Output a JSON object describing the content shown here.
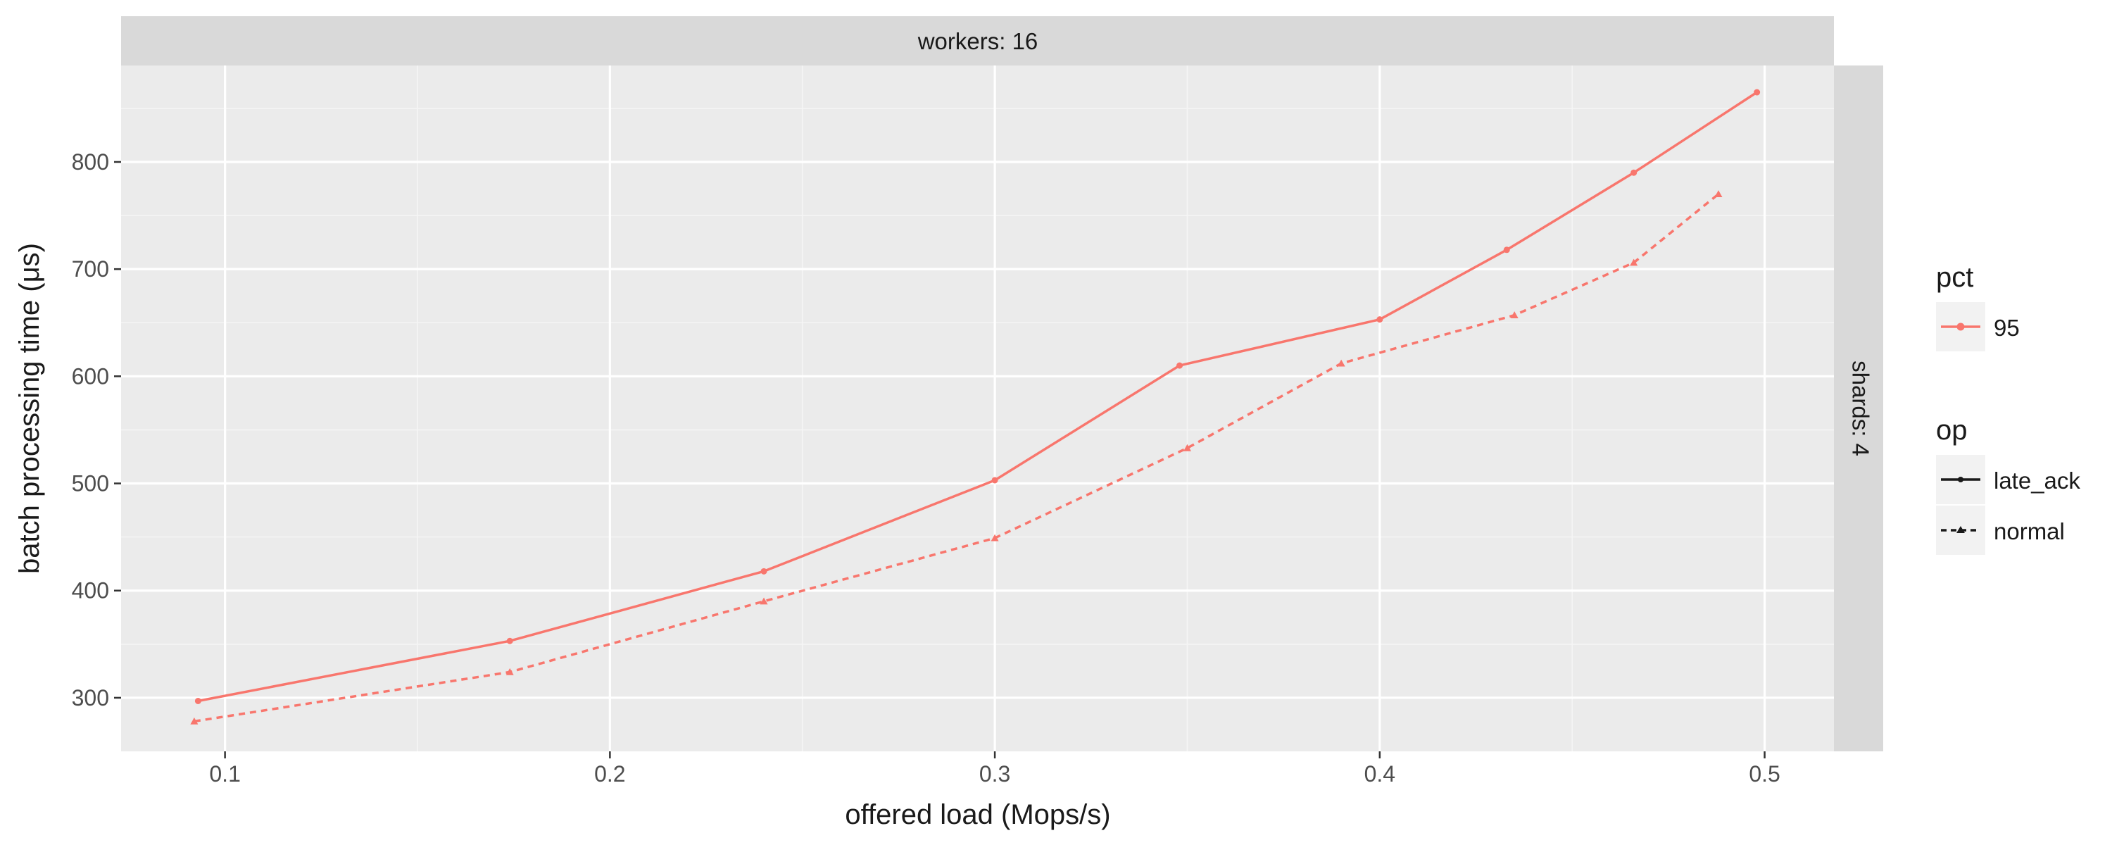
{
  "chart_data": {
    "type": "line",
    "facet": {
      "top_strip": "workers: 16",
      "right_strip": "shards: 4"
    },
    "xlabel": "offered load (Mops/s)",
    "ylabel": "batch processing time (μs)",
    "xlim": [
      0.073,
      0.518
    ],
    "ylim": [
      250,
      890
    ],
    "x_ticks": [
      0.1,
      0.2,
      0.3,
      0.4,
      0.5
    ],
    "x_tick_labels": [
      "0.1",
      "0.2",
      "0.3",
      "0.4",
      "0.5"
    ],
    "y_ticks": [
      300,
      400,
      500,
      600,
      700,
      800
    ],
    "y_tick_labels": [
      "300",
      "400",
      "500",
      "600",
      "700",
      "800"
    ],
    "grid": true,
    "series": [
      {
        "name": "late_ack",
        "pct": "95",
        "op": "late_ack",
        "color": "#f8766d",
        "linetype": "solid",
        "marker": "circle",
        "x": [
          0.093,
          0.174,
          0.24,
          0.3,
          0.348,
          0.4,
          0.433,
          0.466,
          0.498
        ],
        "y": [
          297,
          353,
          418,
          503,
          610,
          653,
          718,
          790,
          865
        ]
      },
      {
        "name": "normal",
        "pct": "95",
        "op": "normal",
        "color": "#f8766d",
        "linetype": "dashed",
        "marker": "triangle",
        "x": [
          0.092,
          0.174,
          0.24,
          0.3,
          0.35,
          0.39,
          0.435,
          0.466,
          0.488
        ],
        "y": [
          278,
          324,
          390,
          449,
          533,
          612,
          657,
          706,
          770
        ]
      }
    ],
    "legend": {
      "placement": "right",
      "groups": [
        {
          "title": "pct",
          "items": [
            {
              "label": "95",
              "color": "#f8766d"
            }
          ]
        },
        {
          "title": "op",
          "items": [
            {
              "label": "late_ack",
              "linetype": "solid"
            },
            {
              "label": "normal",
              "linetype": "dashed"
            }
          ]
        }
      ]
    },
    "colors": {
      "panel_bg": "#ebebeb",
      "strip_bg": "#d9d9d9",
      "grid_major": "#ffffff",
      "grid_minor": "#f5f5f5",
      "tick_label": "#4d4d4d",
      "text": "#1a1a1a",
      "series": "#f8766d"
    }
  }
}
